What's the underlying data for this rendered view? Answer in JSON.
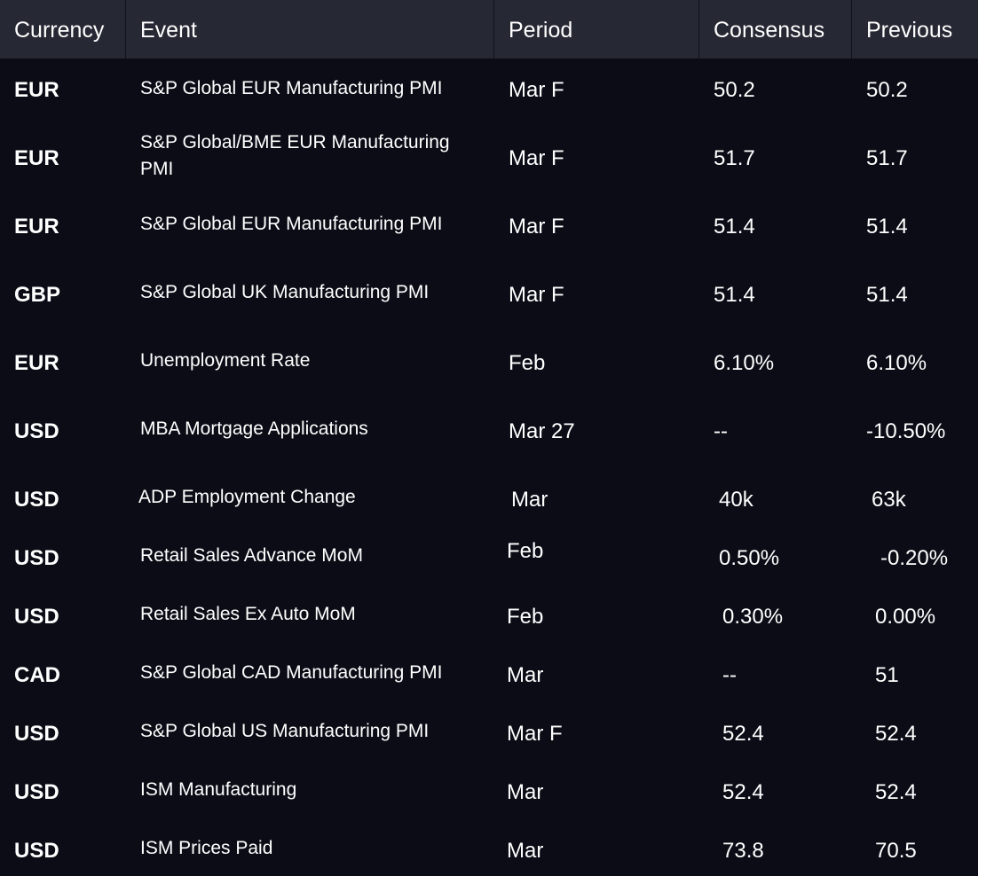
{
  "columns": {
    "currency": "Currency",
    "event": "Event",
    "period": "Period",
    "consensus": "Consensus",
    "previous": "Previous"
  },
  "rows": [
    {
      "currency": "EUR",
      "event": "S&P Global EUR Manufacturing PMI",
      "period": "Mar F",
      "consensus": "50.2",
      "previous": "50.2"
    },
    {
      "currency": "EUR",
      "event": "S&P Global/BME EUR Manufacturing PMI",
      "period": "Mar F",
      "consensus": "51.7",
      "previous": "51.7"
    },
    {
      "currency": "EUR",
      "event": "S&P Global EUR Manufacturing PMI",
      "period": "Mar F",
      "consensus": "51.4",
      "previous": "51.4"
    },
    {
      "currency": "GBP",
      "event": "S&P Global UK Manufacturing PMI",
      "period": "Mar F",
      "consensus": "51.4",
      "previous": "51.4"
    },
    {
      "currency": "EUR",
      "event": "Unemployment Rate",
      "period": "Feb",
      "consensus": "6.10%",
      "previous": "6.10%"
    },
    {
      "currency": "USD",
      "event": "MBA Mortgage Applications",
      "period": "Mar 27",
      "consensus": "--",
      "previous": "-10.50%"
    },
    {
      "currency": "USD",
      "event": "ADP Employment Change",
      "period": "Mar",
      "consensus": "40k",
      "previous": "63k"
    },
    {
      "currency": "USD",
      "event": "Retail Sales Advance MoM",
      "period": "Feb",
      "consensus": "0.50%",
      "previous": "-0.20%"
    },
    {
      "currency": "USD",
      "event": "Retail Sales Ex Auto MoM",
      "period": "Feb",
      "consensus": "0.30%",
      "previous": "0.00%"
    },
    {
      "currency": "CAD",
      "event": "S&P Global CAD Manufacturing PMI",
      "period": "Mar",
      "consensus": "--",
      "previous": "51"
    },
    {
      "currency": "USD",
      "event": "S&P Global US Manufacturing PMI",
      "period": "Mar F",
      "consensus": "52.4",
      "previous": "52.4"
    },
    {
      "currency": "USD",
      "event": "ISM Manufacturing",
      "period": "Mar",
      "consensus": "52.4",
      "previous": "52.4"
    },
    {
      "currency": "USD",
      "event": "ISM Prices Paid",
      "period": "Mar",
      "consensus": "73.8",
      "previous": "70.5"
    }
  ]
}
